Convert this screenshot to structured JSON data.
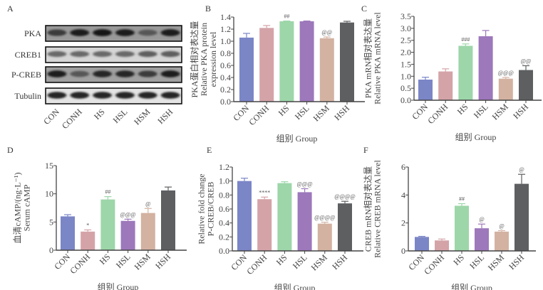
{
  "figure": {
    "panel_letters": [
      "A",
      "B",
      "C",
      "D",
      "E",
      "F"
    ],
    "group_axis_title": "组别  Group",
    "groups": [
      "CON",
      "CONH",
      "HS",
      "HSL",
      "HSM",
      "HSH"
    ],
    "colors": [
      "#7b86c7",
      "#d4a3a8",
      "#9dd6a9",
      "#9d78bb",
      "#d3b2a2",
      "#5d5f61"
    ]
  },
  "western_blot": {
    "rows": [
      {
        "label": "PKA",
        "intensity": [
          0.75,
          0.9,
          0.95,
          0.9,
          0.6,
          0.9
        ],
        "bg": 0.55
      },
      {
        "label": "CREB1",
        "intensity": [
          0.5,
          0.5,
          0.5,
          0.5,
          0.55,
          0.55
        ],
        "bg": 0.15
      },
      {
        "label": "P-CREB",
        "intensity": [
          0.9,
          0.6,
          0.85,
          0.85,
          0.75,
          0.9
        ],
        "bg": 0.5
      },
      {
        "label": "Tubulin",
        "intensity": [
          0.85,
          0.85,
          0.85,
          0.85,
          0.85,
          0.85
        ],
        "bg": 0.05
      }
    ]
  },
  "chart_data": [
    {
      "panel": "B",
      "type": "bar",
      "categories": [
        "CON",
        "CONH",
        "HS",
        "HSL",
        "HSM",
        "HSH"
      ],
      "values": [
        1.06,
        1.22,
        1.33,
        1.33,
        1.05,
        1.31
      ],
      "errors": [
        0.07,
        0.04,
        0.005,
        0.005,
        0.02,
        0.02
      ],
      "annotations": [
        "",
        "",
        "##",
        "",
        "@@",
        ""
      ],
      "ylabel_cn": "PKA蛋白相对表达量",
      "ylabel_en": "Relative PKA protein",
      "ylabel_en2": "expression level",
      "xlabel": "组别  Group",
      "ylim": [
        0,
        1.4
      ],
      "yticks": [
        "0.0",
        "0.2",
        "0.4",
        "0.6",
        "0.8",
        "1.0",
        "1.2",
        "1.4"
      ],
      "ytick_values": [
        0,
        0.2,
        0.4,
        0.6,
        0.8,
        1.0,
        1.2,
        1.4
      ]
    },
    {
      "panel": "C",
      "type": "bar",
      "categories": [
        "CON",
        "CONH",
        "HS",
        "HSL",
        "HSM",
        "HSH"
      ],
      "values": [
        0.86,
        1.2,
        2.27,
        2.67,
        0.9,
        1.26
      ],
      "errors": [
        0.1,
        0.11,
        0.08,
        0.24,
        0.05,
        0.18
      ],
      "annotations": [
        "",
        "",
        "###",
        "",
        "@@@",
        "@@"
      ],
      "ylabel_cn": "PKA mRN相对表达量",
      "ylabel_en": "Relative PKA mRNA level",
      "ylabel_en2": "",
      "xlabel": "组别  Group",
      "ylim": [
        0,
        3.5
      ],
      "yticks": [
        "0.0",
        "0.5",
        "1.0",
        "1.5",
        "2.0",
        "2.5",
        "3.0",
        "3.5"
      ],
      "ytick_values": [
        0,
        0.5,
        1.0,
        1.5,
        2.0,
        2.5,
        3.0,
        3.5
      ]
    },
    {
      "panel": "D",
      "type": "bar",
      "categories": [
        "CON",
        "CONH",
        "HS",
        "HSL",
        "HSM",
        "HSH"
      ],
      "values": [
        6.0,
        3.3,
        9.0,
        5.2,
        6.6,
        10.6
      ],
      "errors": [
        0.3,
        0.3,
        0.5,
        0.3,
        0.8,
        0.6
      ],
      "annotations": [
        "",
        "*",
        "##",
        "@@@",
        "@",
        ""
      ],
      "ylabel_cn": "血清cAMP/(ng·L⁻¹)",
      "ylabel_en": "Serum cAMP",
      "ylabel_en2": "",
      "xlabel": "组别  Group",
      "ylim": [
        0,
        15
      ],
      "yticks": [
        "0",
        "5",
        "10",
        "15"
      ],
      "ytick_values": [
        0,
        5,
        10,
        15
      ]
    },
    {
      "panel": "E",
      "type": "bar",
      "categories": [
        "CON",
        "CONH",
        "HS",
        "HSL",
        "HSM",
        "HSH"
      ],
      "values": [
        1.0,
        0.74,
        0.97,
        0.84,
        0.39,
        0.68
      ],
      "errors": [
        0.04,
        0.03,
        0.02,
        0.05,
        0.02,
        0.03
      ],
      "annotations": [
        "",
        "****",
        "",
        "@@@",
        "@@@@",
        "@@@@"
      ],
      "ylabel_cn": "",
      "ylabel_en": "Relative fold change",
      "ylabel_en2": "P-CREB/CREB",
      "xlabel": "组别  Group",
      "ylim": [
        0,
        1.2
      ],
      "yticks": [
        "0.0",
        "0.2",
        "0.4",
        "0.6",
        "0.8",
        "1.0",
        "1.2"
      ],
      "ytick_values": [
        0,
        0.2,
        0.4,
        0.6,
        0.8,
        1.0,
        1.2
      ]
    },
    {
      "panel": "F",
      "type": "bar",
      "categories": [
        "CON",
        "CONH",
        "HS",
        "HSL",
        "HSM",
        "HSH"
      ],
      "values": [
        1.0,
        0.75,
        3.23,
        1.62,
        1.38,
        4.8
      ],
      "errors": [
        0.04,
        0.1,
        0.15,
        0.3,
        0.07,
        0.68
      ],
      "annotations": [
        "",
        "",
        "##",
        "@",
        "@",
        "@"
      ],
      "ylabel_cn": "CREB mRN相对表达量",
      "ylabel_en": "Relative CREB mRNA level",
      "ylabel_en2": "",
      "xlabel": "组别  Group",
      "ylim": [
        0,
        6
      ],
      "yticks": [
        "0",
        "2",
        "4",
        "6"
      ],
      "ytick_values": [
        0,
        2,
        4,
        6
      ]
    }
  ]
}
